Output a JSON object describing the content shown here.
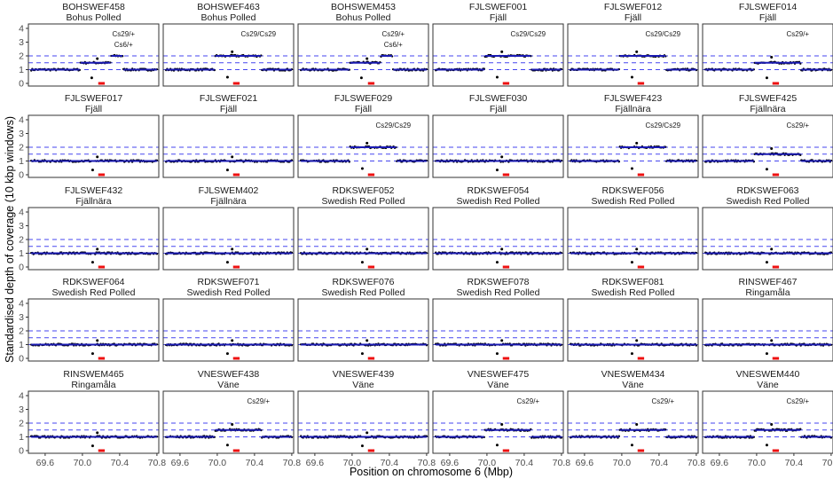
{
  "chart_data": {
    "type": "scatter",
    "layout": "facet-grid",
    "facet_columns": 6,
    "xlabel": "Position on chromosome 6 (Mbp)",
    "ylabel": "Standardised depth of coverage (10 kbp windows)",
    "xlim": [
      69.42,
      70.82
    ],
    "ylim": [
      0,
      4
    ],
    "x_ticks": [
      69.6,
      70.0,
      70.4,
      70.8
    ],
    "x_tick_labels": [
      "69.6",
      "70.0",
      "70.4",
      "70.8"
    ],
    "y_ticks": [
      0,
      1,
      2,
      3,
      4
    ],
    "y_tick_labels": [
      "0",
      "1",
      "2",
      "3",
      "4"
    ],
    "reference_lines": {
      "values": [
        1.0,
        1.5,
        2.0
      ],
      "style": "dashed",
      "color": "#3333ee"
    },
    "region_marker": {
      "x_start": 70.17,
      "x_end": 70.24,
      "y": 0.0,
      "color": "#ee1111"
    },
    "point_color": "#000000",
    "smooth_color": "#1a1ab3",
    "panels": [
      {
        "id": "BOHSWEF458",
        "breed": "Bohus Polled",
        "annotations": [
          "Cs29/+",
          "Cs6/+"
        ],
        "profile": "cs29het_cs6het"
      },
      {
        "id": "BOHSWEF463",
        "breed": "Bohus Polled",
        "annotations": [
          "Cs29/Cs29"
        ],
        "profile": "cs29hom"
      },
      {
        "id": "BOHSWEM453",
        "breed": "Bohus Polled",
        "annotations": [
          "Cs29/+",
          "Cs6/+"
        ],
        "profile": "cs29het_cs6het"
      },
      {
        "id": "FJLSWEF001",
        "breed": "Fjäll",
        "annotations": [
          "Cs29/Cs29"
        ],
        "profile": "cs29hom"
      },
      {
        "id": "FJLSWEF012",
        "breed": "Fjäll",
        "annotations": [
          "Cs29/Cs29"
        ],
        "profile": "cs29hom"
      },
      {
        "id": "FJLSWEF014",
        "breed": "Fjäll",
        "annotations": [
          "Cs29/+"
        ],
        "profile": "cs29het"
      },
      {
        "id": "FJLSWEF017",
        "breed": "Fjäll",
        "annotations": [],
        "profile": "normal"
      },
      {
        "id": "FJLSWEF021",
        "breed": "Fjäll",
        "annotations": [],
        "profile": "normal"
      },
      {
        "id": "FJLSWEF029",
        "breed": "Fjäll",
        "annotations": [
          "Cs29/Cs29"
        ],
        "profile": "cs29hom"
      },
      {
        "id": "FJLSWEF030",
        "breed": "Fjäll",
        "annotations": [],
        "profile": "normal"
      },
      {
        "id": "FJLSWEF423",
        "breed": "Fjällnära",
        "annotations": [
          "Cs29/Cs29"
        ],
        "profile": "cs29hom"
      },
      {
        "id": "FJLSWEF425",
        "breed": "Fjällnära",
        "annotations": [
          "Cs29/+"
        ],
        "profile": "cs29het"
      },
      {
        "id": "FJLSWEF432",
        "breed": "Fjällnära",
        "annotations": [],
        "profile": "normal"
      },
      {
        "id": "FJLSWEM402",
        "breed": "Fjällnära",
        "annotations": [],
        "profile": "normal"
      },
      {
        "id": "RDKSWEF052",
        "breed": "Swedish Red Polled",
        "annotations": [],
        "profile": "normal"
      },
      {
        "id": "RDKSWEF054",
        "breed": "Swedish Red Polled",
        "annotations": [],
        "profile": "normal"
      },
      {
        "id": "RDKSWEF056",
        "breed": "Swedish Red Polled",
        "annotations": [],
        "profile": "normal"
      },
      {
        "id": "RDKSWEF063",
        "breed": "Swedish Red Polled",
        "annotations": [],
        "profile": "normal"
      },
      {
        "id": "RDKSWEF064",
        "breed": "Swedish Red Polled",
        "annotations": [],
        "profile": "normal"
      },
      {
        "id": "RDKSWEF071",
        "breed": "Swedish Red Polled",
        "annotations": [],
        "profile": "normal"
      },
      {
        "id": "RDKSWEF076",
        "breed": "Swedish Red Polled",
        "annotations": [],
        "profile": "normal"
      },
      {
        "id": "RDKSWEF078",
        "breed": "Swedish Red Polled",
        "annotations": [],
        "profile": "normal"
      },
      {
        "id": "RDKSWEF081",
        "breed": "Swedish Red Polled",
        "annotations": [],
        "profile": "normal"
      },
      {
        "id": "RINSWEF467",
        "breed": "Ringamåla",
        "annotations": [],
        "profile": "normal"
      },
      {
        "id": "RINSWEM465",
        "breed": "Ringamåla",
        "annotations": [],
        "profile": "normal"
      },
      {
        "id": "VNESWEF438",
        "breed": "Väne",
        "annotations": [
          "Cs29/+"
        ],
        "profile": "cs29het"
      },
      {
        "id": "VNESWEF439",
        "breed": "Väne",
        "annotations": [],
        "profile": "normal"
      },
      {
        "id": "VNESWEF475",
        "breed": "Väne",
        "annotations": [
          "Cs29/+"
        ],
        "profile": "cs29het"
      },
      {
        "id": "VNESWEM434",
        "breed": "Väne",
        "annotations": [
          "Cs29/+"
        ],
        "profile": "cs29het"
      },
      {
        "id": "VNESWEM440",
        "breed": "Väne",
        "annotations": [
          "Cs29/+"
        ],
        "profile": "cs29het"
      }
    ],
    "profiles": {
      "normal": {
        "segments": [
          {
            "x_start": 69.45,
            "x_end": 70.8,
            "depth": 1.0
          }
        ],
        "dip": {
          "x": 70.11,
          "depth": 0.35
        },
        "spike": {
          "x": 70.16,
          "depth": 1.3
        }
      },
      "cs29het": {
        "segments": [
          {
            "x_start": 69.45,
            "x_end": 69.97,
            "depth": 1.0
          },
          {
            "x_start": 69.98,
            "x_end": 70.47,
            "depth": 1.5
          },
          {
            "x_start": 70.48,
            "x_end": 70.8,
            "depth": 1.0
          }
        ],
        "dip": {
          "x": 70.11,
          "depth": 0.4
        },
        "spike": {
          "x": 70.16,
          "depth": 1.9
        }
      },
      "cs29hom": {
        "segments": [
          {
            "x_start": 69.45,
            "x_end": 69.97,
            "depth": 1.0
          },
          {
            "x_start": 69.98,
            "x_end": 70.47,
            "depth": 2.0
          },
          {
            "x_start": 70.48,
            "x_end": 70.8,
            "depth": 1.0
          }
        ],
        "dip": {
          "x": 70.11,
          "depth": 0.45
        },
        "spike": {
          "x": 70.16,
          "depth": 2.3
        }
      },
      "cs29het_cs6het": {
        "segments": [
          {
            "x_start": 69.45,
            "x_end": 69.97,
            "depth": 1.0
          },
          {
            "x_start": 69.98,
            "x_end": 70.3,
            "depth": 1.5
          },
          {
            "x_start": 70.31,
            "x_end": 70.43,
            "depth": 2.0
          },
          {
            "x_start": 70.44,
            "x_end": 70.8,
            "depth": 1.0
          }
        ],
        "dip": {
          "x": 70.1,
          "depth": 0.4
        },
        "spike": {
          "x": 70.16,
          "depth": 1.8
        }
      }
    }
  }
}
